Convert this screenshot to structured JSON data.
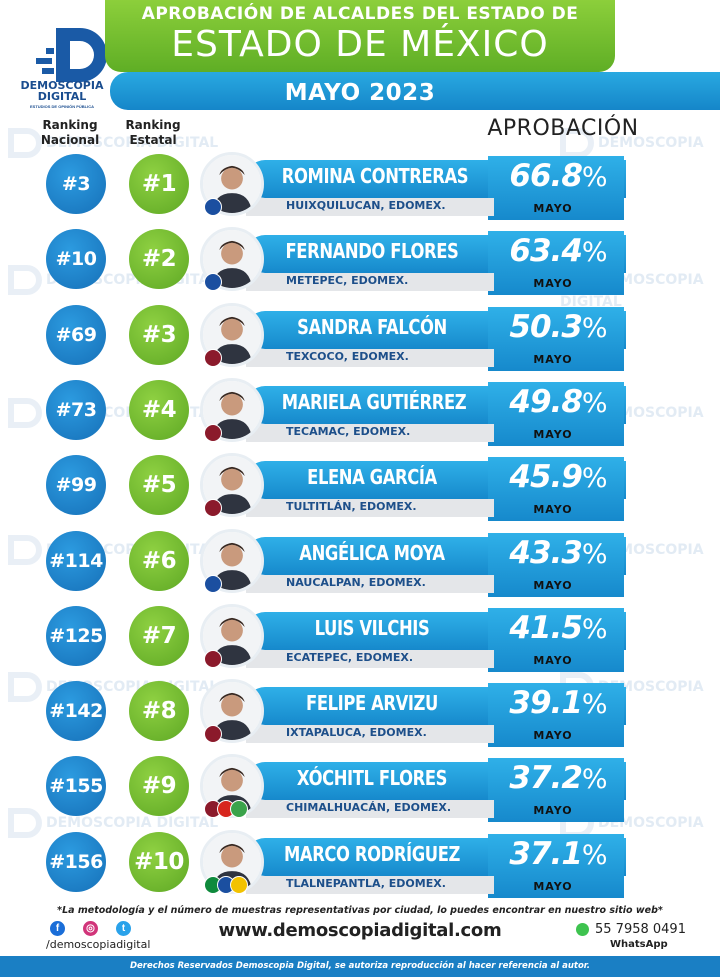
{
  "header": {
    "title_top": "APROBACIÓN DE ALCALDES DEL ESTADO DE",
    "title_main": "ESTADO DE MÉXICO",
    "month": "MAYO 2023",
    "logo_name": "DEMOSCOPIA DIGITAL",
    "logo_sub": "ESTUDIOS DE OPINIÓN PÚBLICA"
  },
  "columns": {
    "national": "Ranking Nacional",
    "state": "Ranking Estatal",
    "approval": "APROBACIÓN"
  },
  "watermark": "DEMOSCOPIA DIGITAL",
  "chart_data": {
    "type": "table",
    "title": "APROBACIÓN DE ALCALDES DEL ESTADO DE ESTADO DE MÉXICO",
    "subtitle": "MAYO 2023",
    "value_label": "MAYO",
    "unit": "%",
    "rows": [
      {
        "national": "#3",
        "state": "#1",
        "name": "ROMINA CONTRERAS",
        "city": "HUIXQUILUCAN, EDOMEX.",
        "approval": "66.8",
        "party": "PAN"
      },
      {
        "national": "#10",
        "state": "#2",
        "name": "FERNANDO FLORES",
        "city": "METEPEC, EDOMEX.",
        "approval": "63.4",
        "party": "PAN"
      },
      {
        "national": "#69",
        "state": "#3",
        "name": "SANDRA FALCÓN",
        "city": "TEXCOCO, EDOMEX.",
        "approval": "50.3",
        "party": "MORENA"
      },
      {
        "national": "#73",
        "state": "#4",
        "name": "MARIELA GUTIÉRREZ",
        "city": "TECAMAC, EDOMEX.",
        "approval": "49.8",
        "party": "MORENA"
      },
      {
        "national": "#99",
        "state": "#5",
        "name": "ELENA GARCÍA",
        "city": "TULTITLÁN, EDOMEX.",
        "approval": "45.9",
        "party": "MORENA"
      },
      {
        "national": "#114",
        "state": "#6",
        "name": "ANGÉLICA MOYA",
        "city": "NAUCALPAN, EDOMEX.",
        "approval": "43.3",
        "party": "PAN"
      },
      {
        "national": "#125",
        "state": "#7",
        "name": "LUIS VILCHIS",
        "city": "ECATEPEC, EDOMEX.",
        "approval": "41.5",
        "party": "MORENA"
      },
      {
        "national": "#142",
        "state": "#8",
        "name": "FELIPE ARVIZU",
        "city": "IXTAPALUCA, EDOMEX.",
        "approval": "39.1",
        "party": "MORENA"
      },
      {
        "national": "#155",
        "state": "#9",
        "name": "XÓCHITL FLORES",
        "city": "CHIMALHUACÁN, EDOMEX.",
        "approval": "37.2",
        "party": "MORENA-PT-PVEM"
      },
      {
        "national": "#156",
        "state": "#10",
        "name": "MARCO RODRÍGUEZ",
        "city": "TLALNEPANTLA, EDOMEX.",
        "approval": "37.1",
        "party": "PRI-PAN-PRD"
      }
    ]
  },
  "colors": {
    "blue": "#1689cc",
    "green": "#5fae25",
    "morena": "#8b1a2b",
    "pan": "#1b4fa0"
  },
  "footer": {
    "note": "*La metodología y el número de muestras representativas por ciudad, lo puedes encontrar en nuestro sitio web*",
    "handle": "/demoscopiadigital",
    "site": "www.demoscopiadigital.com",
    "phone": "55 7958 0491",
    "whatsapp": "WhatsApp",
    "rights": "Derechos Reservados Demoscopia Digital, se autoriza reproducción al hacer referencia al autor.",
    "icons": [
      "facebook-icon",
      "instagram-icon",
      "twitter-icon",
      "whatsapp-icon"
    ]
  }
}
